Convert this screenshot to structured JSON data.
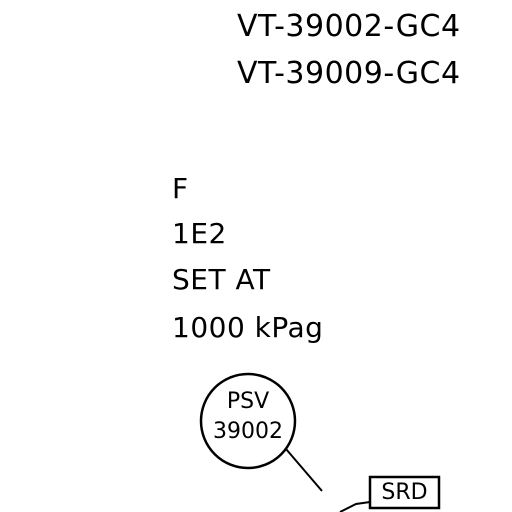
{
  "valve_tags": [
    "VT-39002-GC4",
    "VT-39009-GC4"
  ],
  "notes": {
    "line1": "F",
    "line2": "1E2",
    "line3": "SET AT",
    "line4": "1000 kPag"
  },
  "psv_bubble": {
    "type": "PSV",
    "number": "39002"
  },
  "discharge_box": {
    "label": "SRD"
  }
}
